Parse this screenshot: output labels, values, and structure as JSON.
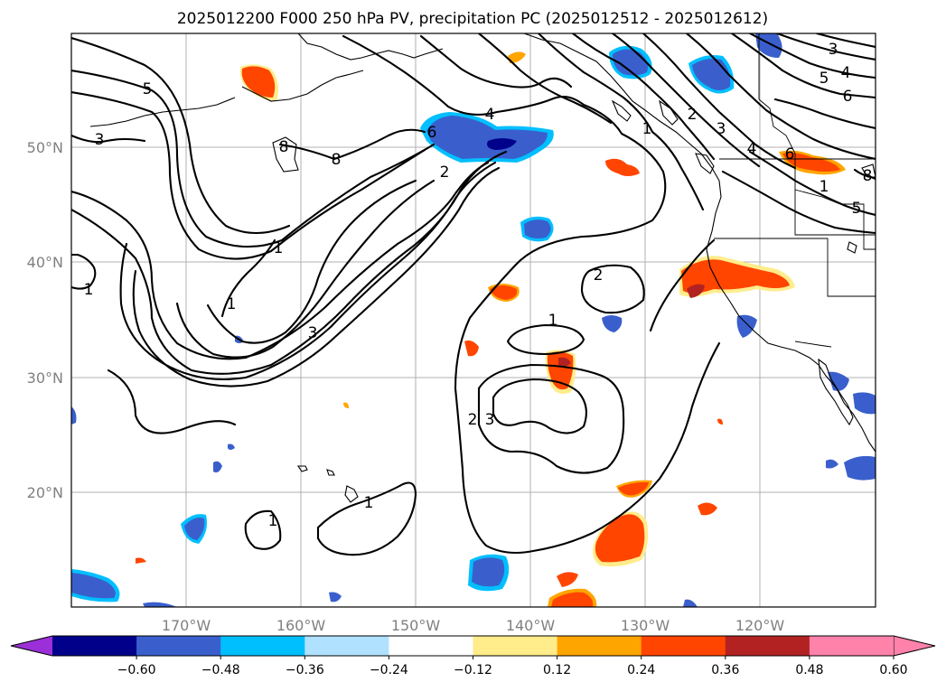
{
  "title": "2025012200 F000 250 hPa PV, precipitation PC (2025012512 - 2025012612)",
  "lon_labels": [
    "170°W",
    "160°W",
    "150°W",
    "140°W",
    "130°W",
    "120°W"
  ],
  "lat_labels": [
    "50°N",
    "40°N",
    "30°N",
    "20°N"
  ],
  "contour_labels": [
    "5",
    "3",
    "8",
    "8",
    "6",
    "4",
    "2",
    "1",
    "1",
    "1",
    "3",
    "2",
    "1",
    "2",
    "3",
    "1",
    "1",
    "2",
    "3",
    "4",
    "5",
    "6",
    "6",
    "4",
    "5",
    "8",
    "3",
    "1",
    "1"
  ],
  "colorbar": {
    "ticks": [
      "−0.60",
      "−0.48",
      "−0.36",
      "−0.24",
      "−0.12",
      "0.12",
      "0.24",
      "0.36",
      "0.48",
      "0.60"
    ],
    "colors": [
      "#9b30d8",
      "#00008b",
      "#3a5fcd",
      "#00bfff",
      "#b0e2ff",
      "#ffffff",
      "#ffec8b",
      "#ffa500",
      "#ff4500",
      "#b22222",
      "#ff82ab"
    ]
  },
  "shading_colors": {
    "pos_outer": "#ffec8b",
    "pos_mid": "#ffa500",
    "pos_strong": "#ff4500",
    "pos_max": "#b22222",
    "neg_outer": "#00bfff",
    "neg_mid": "#3a5fcd",
    "neg_strong": "#00008b"
  }
}
